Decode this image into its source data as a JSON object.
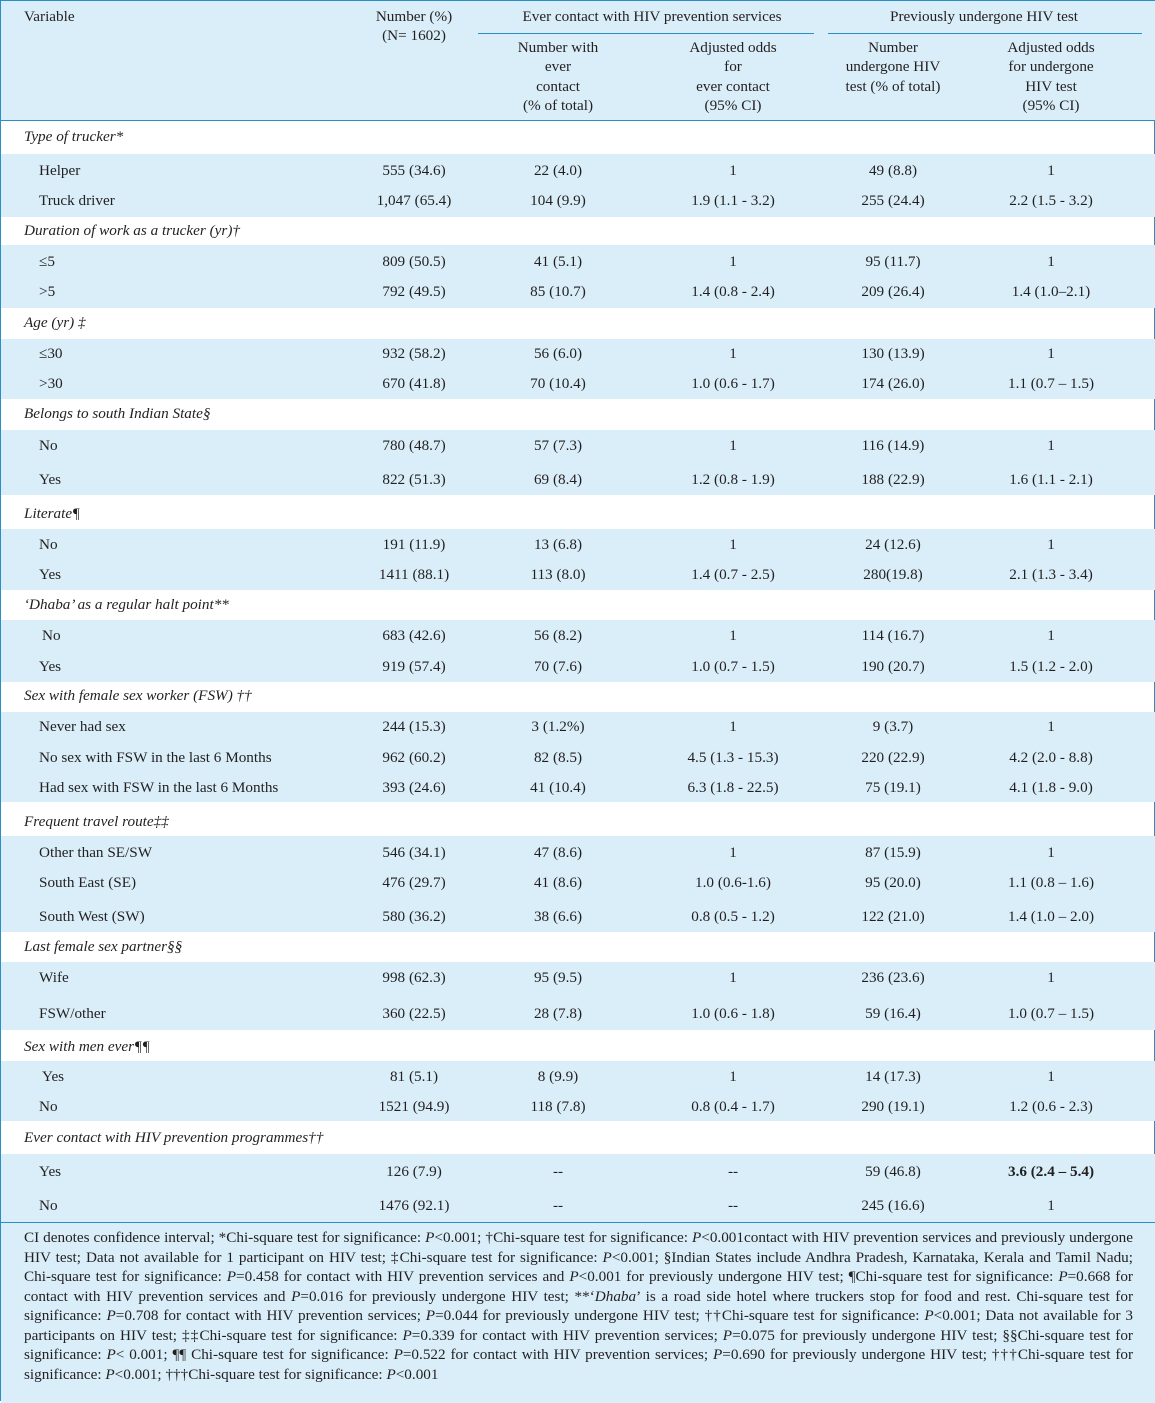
{
  "header": {
    "variable": "Variable",
    "number_l1": "Number (%)",
    "number_l2": "(N= 1602)",
    "group_contact": "Ever contact with HIV prevention services",
    "group_test": "Previously undergone HIV test",
    "sub_contact_n": [
      "Number with",
      "ever",
      "contact",
      "(% of total)"
    ],
    "sub_contact_or": [
      "Adjusted odds",
      "for",
      "ever contact",
      "(95% CI)"
    ],
    "sub_test_n": [
      "Number",
      "undergone HIV",
      "test (% of total)"
    ],
    "sub_test_or": [
      "Adjusted odds",
      "for undergone",
      "HIV test",
      "(95% CI)"
    ]
  },
  "groups": [
    {
      "title": "Type of trucker*",
      "rows": [
        {
          "label": "Helper",
          "n": "555 (34.6)",
          "cn": "22 (4.0)",
          "cor": "1",
          "tn": "49 (8.8)",
          "tor": "1"
        },
        {
          "label": "Truck driver",
          "n": "1,047 (65.4)",
          "cn": "104 (9.9)",
          "cor": "1.9 (1.1 - 3.2)",
          "tn": "255 (24.4)",
          "tor": "2.2 (1.5 - 3.2)"
        }
      ]
    },
    {
      "title": "Duration of work as a trucker (yr)†",
      "rows": [
        {
          "label": "≤5",
          "n": "809 (50.5)",
          "cn": "41 (5.1)",
          "cor": "1",
          "tn": "95 (11.7)",
          "tor": "1"
        },
        {
          "label": ">5",
          "n": "792 (49.5)",
          "cn": "85 (10.7)",
          "cor": "1.4 (0.8 - 2.4)",
          "tn": "209 (26.4)",
          "tor": "1.4 (1.0–2.1)"
        }
      ]
    },
    {
      "title": "Age (yr) ‡",
      "rows": [
        {
          "label": "≤30",
          "n": "932 (58.2)",
          "cn": "56 (6.0)",
          "cor": "1",
          "tn": "130 (13.9)",
          "tor": "1"
        },
        {
          "label": ">30",
          "n": "670 (41.8)",
          "cn": "70 (10.4)",
          "cor": "1.0 (0.6 - 1.7)",
          "tn": "174 (26.0)",
          "tor": "1.1 (0.7 – 1.5)"
        }
      ]
    },
    {
      "title": "Belongs to south Indian State§",
      "rows": [
        {
          "label": "No",
          "n": "780 (48.7)",
          "cn": "57 (7.3)",
          "cor": "1",
          "tn": "116 (14.9)",
          "tor": "1"
        },
        {
          "label": "Yes",
          "n": "822 (51.3)",
          "cn": "69 (8.4)",
          "cor": "1.2 (0.8 - 1.9)",
          "tn": "188 (22.9)",
          "tor": "1.6 (1.1 - 2.1)"
        }
      ]
    },
    {
      "title": "Literate¶",
      "rows": [
        {
          "label": "No",
          "n": "191 (11.9)",
          "cn": "13 (6.8)",
          "cor": "1",
          "tn": "24 (12.6)",
          "tor": "1"
        },
        {
          "label": "Yes",
          "n": "1411 (88.1)",
          "cn": "113 (8.0)",
          "cor": "1.4 (0.7 - 2.5)",
          "tn": "280(19.8)",
          "tor": "2.1 (1.3 - 3.4)"
        }
      ]
    },
    {
      "title": "‘Dhaba’ as a regular halt point**",
      "rows": [
        {
          "label": "No",
          "n": "683 (42.6)",
          "cn": "56 (8.2)",
          "cor": "1",
          "tn": "114 (16.7)",
          "tor": "1"
        },
        {
          "label": "Yes",
          "n": "919 (57.4)",
          "cn": "70 (7.6)",
          "cor": "1.0 (0.7 - 1.5)",
          "tn": "190 (20.7)",
          "tor": "1.5 (1.2 - 2.0)"
        }
      ]
    },
    {
      "title": "Sex with female sex worker (FSW) ††",
      "rows": [
        {
          "label": "Never had sex",
          "n": "244 (15.3)",
          "cn": "3 (1.2%)",
          "cor": "1",
          "tn": "9 (3.7)",
          "tor": "1"
        },
        {
          "label": "No sex with FSW in the last 6 Months",
          "n": "962 (60.2)",
          "cn": "82 (8.5)",
          "cor": "4.5 (1.3 - 15.3)",
          "tn": "220 (22.9)",
          "tor": "4.2 (2.0 - 8.8)"
        },
        {
          "label": "Had sex with FSW in the last 6 Months",
          "n": "393 (24.6)",
          "cn": "41 (10.4)",
          "cor": "6.3 (1.8 - 22.5)",
          "tn": "75 (19.1)",
          "tor": "4.1 (1.8 - 9.0)"
        }
      ]
    },
    {
      "title": "Frequent travel route‡‡",
      "rows": [
        {
          "label": "Other than SE/SW",
          "n": "546 (34.1)",
          "cn": "47 (8.6)",
          "cor": "1",
          "tn": "87 (15.9)",
          "tor": "1"
        },
        {
          "label": "South East (SE)",
          "n": "476 (29.7)",
          "cn": "41 (8.6)",
          "cor": "1.0 (0.6-1.6)",
          "tn": "95 (20.0)",
          "tor": "1.1 (0.8 – 1.6)"
        },
        {
          "label": "South West (SW)",
          "n": "580 (36.2)",
          "cn": "38 (6.6)",
          "cor": "0.8 (0.5 - 1.2)",
          "tn": "122 (21.0)",
          "tor": "1.4 (1.0 – 2.0)"
        }
      ]
    },
    {
      "title": "Last female sex partner§§",
      "rows": [
        {
          "label": "Wife",
          "n": "998 (62.3)",
          "cn": "95 (9.5)",
          "cor": "1",
          "tn": "236 (23.6)",
          "tor": "1"
        },
        {
          "label": "FSW/other",
          "n": "360 (22.5)",
          "cn": "28 (7.8)",
          "cor": "1.0 (0.6 - 1.8)",
          "tn": "59 (16.4)",
          "tor": "1.0 (0.7 – 1.5)"
        }
      ]
    },
    {
      "title": "Sex with men ever¶¶",
      "rows": [
        {
          "label": "Yes",
          "n": "81 (5.1)",
          "cn": "8 (9.9)",
          "cor": "1",
          "tn": "14 (17.3)",
          "tor": "1"
        },
        {
          "label": "No",
          "n": "1521 (94.9)",
          "cn": "118 (7.8)",
          "cor": "0.8 (0.4 - 1.7)",
          "tn": "290 (19.1)",
          "tor": "1.2 (0.6 - 2.3)"
        }
      ]
    },
    {
      "title": "Ever contact with HIV prevention programmes††",
      "rows": [
        {
          "label": "Yes",
          "n": "126 (7.9)",
          "cn": "--",
          "cor": "--",
          "tn": "59 (46.8)",
          "tor": "3.6 (2.4 – 5.4)"
        },
        {
          "label": "No",
          "n": "1476 (92.1)",
          "cn": "--",
          "cor": "--",
          "tn": "245 (16.6)",
          "tor": "1"
        }
      ]
    }
  ],
  "footnote": "CI denotes confidence interval; *Chi-square test for significance: P<0.001; †Chi-square test for significance: P<0.001contact with HIV prevention services and previously undergone HIV test; Data not available for 1 participant on HIV test; ‡Chi-square test for significance: P<0.001; §Indian States include Andhra Pradesh, Karnataka, Kerala and Tamil Nadu; Chi-square test for significance: P=0.458 for contact with HIV prevention services and P<0.001 for previously undergone HIV test; ¶Chi-square test for significance: P=0.668 for contact with HIV prevention services and P=0.016 for previously undergone HIV test; **‘Dhaba’ is a road side hotel where truckers stop for food and rest. Chi-square test for significance: P=0.708 for contact with HIV prevention services; P=0.044 for previously undergone HIV test; ††Chi-square test for significance: P<0.001; Data not available for 3 participants on HIV test; ‡‡Chi-square test for significance: P=0.339 for contact with HIV prevention services; P=0.075 for previously undergone HIV test; §§Chi-square test for significance: P< 0.001; ¶¶ Chi-square test for significance: P=0.522 for contact with HIV prevention services; P=0.690 for previously undergone HIV test; †††Chi-square test for significance: P<0.001; †††Chi-square test for significance: P<0.001"
}
